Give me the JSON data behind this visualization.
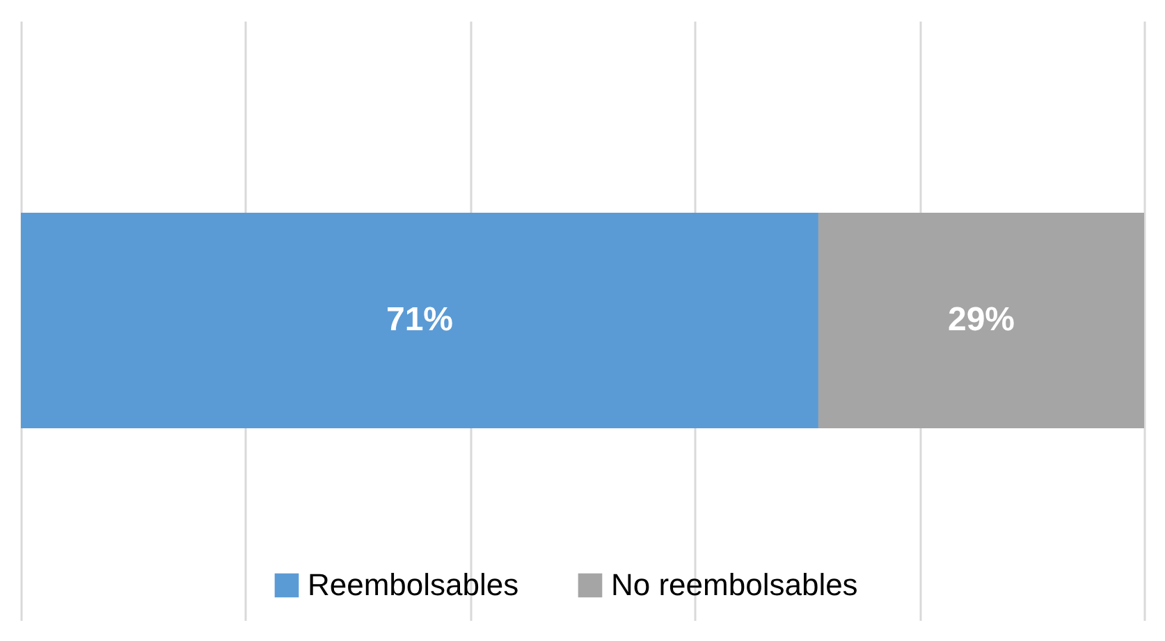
{
  "chart_data": {
    "type": "bar",
    "stacked": true,
    "orientation": "horizontal",
    "categories": [
      null
    ],
    "series": [
      {
        "name": "Reembolsables",
        "color": "#5b9bd5",
        "values": [
          71
        ],
        "value_labels": [
          "71%"
        ]
      },
      {
        "name": "No reembolsables",
        "color": "#a5a5a5",
        "values": [
          29
        ],
        "value_labels": [
          "29%"
        ]
      }
    ],
    "xlim": [
      0,
      100
    ],
    "xticks": [
      {
        "value": 0,
        "label": null
      },
      {
        "value": 20,
        "label": null
      },
      {
        "value": 40,
        "label": null
      },
      {
        "value": 60,
        "label": null
      },
      {
        "value": 80,
        "label": null
      },
      {
        "value": 100,
        "label": null
      }
    ],
    "tick_labels": false,
    "grid": "x",
    "legend": "bottom"
  }
}
